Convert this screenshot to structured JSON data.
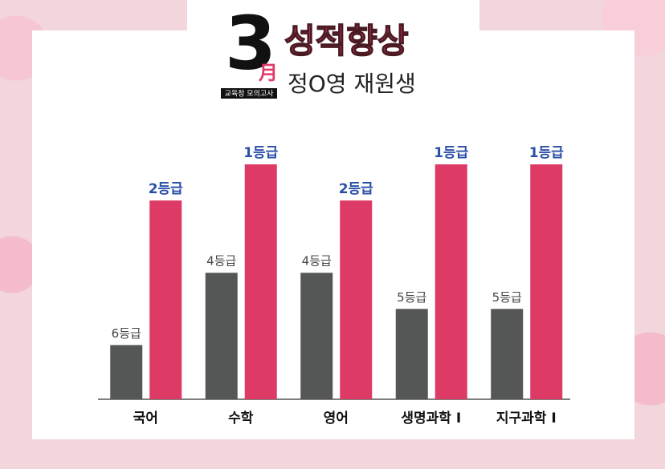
{
  "header": {
    "month": "3",
    "month_char": "月",
    "badge": "교육청 모의고사",
    "title": "성적향상",
    "subtitle": "정O영 재원생"
  },
  "chart_data": {
    "type": "bar",
    "categories": [
      "국어",
      "수학",
      "영어",
      "생명과학 I",
      "지구과학 I"
    ],
    "ylim": [
      7.5,
      1
    ],
    "series": [
      {
        "color": "#555756",
        "values": [
          6,
          4,
          4,
          5,
          5
        ],
        "value_labels": [
          "6등급",
          "4등급",
          "4등급",
          "5등급",
          "5등급"
        ]
      },
      {
        "color": "#dd3a66",
        "values": [
          2,
          1,
          2,
          1,
          1
        ],
        "value_labels": [
          "2등급",
          "1등급",
          "2등급",
          "1등급",
          "1등급"
        ]
      }
    ]
  }
}
